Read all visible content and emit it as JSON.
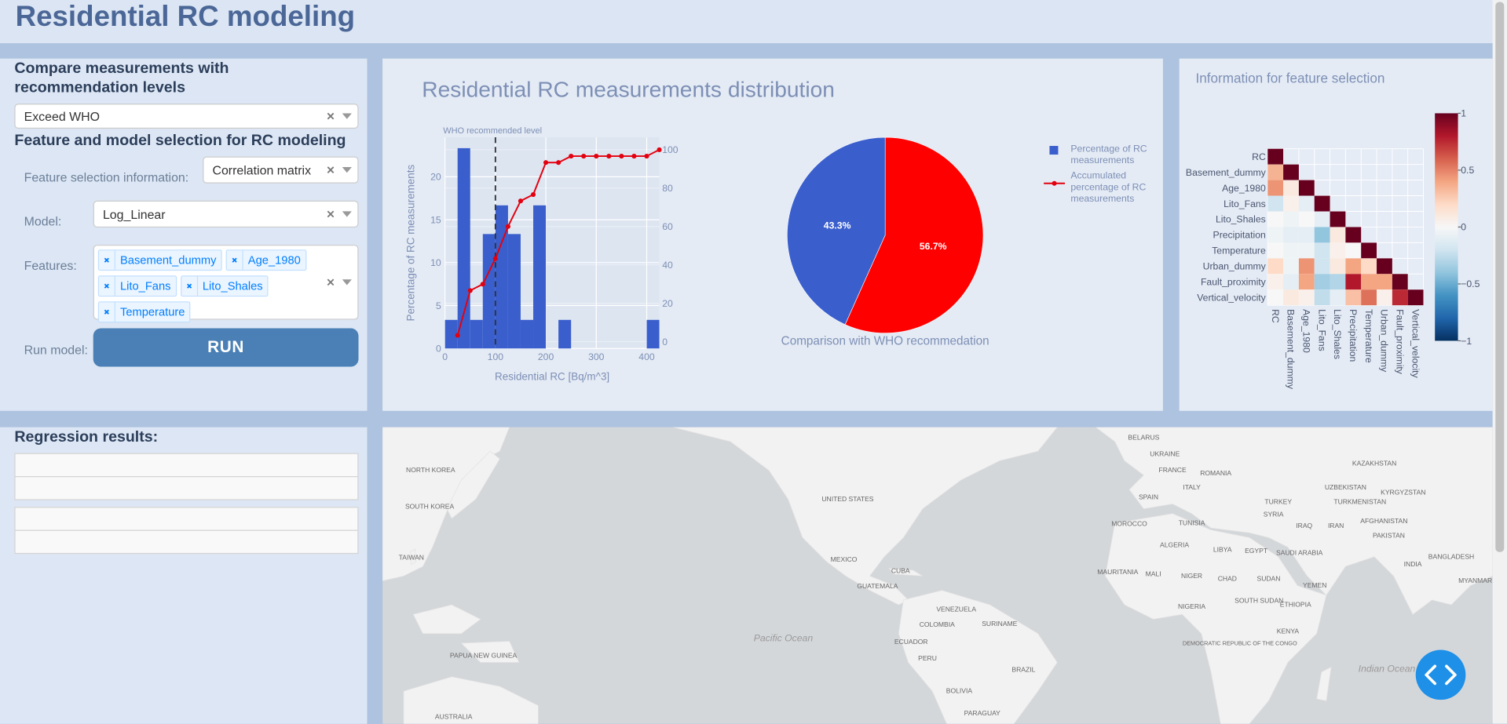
{
  "header": {
    "title": "Residential RC modeling"
  },
  "controls": {
    "compare_heading": "Compare measurements with recommendation levels",
    "compare_value": "Exceed WHO",
    "feature_heading": "Feature and model selection for RC modeling",
    "feature_info_label": "Feature selection information:",
    "feature_info_value": "Correlation matrix",
    "model_label": "Model:",
    "model_value": "Log_Linear",
    "features_label": "Features:",
    "features": [
      "Basement_dummy",
      "Age_1980",
      "Lito_Fans",
      "Lito_Shales",
      "Temperature"
    ],
    "run_label": "Run model:",
    "run_button": "RUN"
  },
  "regression": {
    "heading": "Regression results:"
  },
  "chart_data": [
    {
      "type": "histogram",
      "title": "Residential RC measurements distribution",
      "x_label": "Residential RC [Bq/m^3]",
      "y_label": "Percentage of RC measurements",
      "annotation": "WHO recommended level",
      "who_level": 100,
      "bins": [
        0,
        25,
        50,
        75,
        100,
        125,
        150,
        175,
        200,
        225,
        250,
        275,
        300,
        325,
        350,
        375,
        400,
        425
      ],
      "series": [
        {
          "name": "Percentage of RC measurements",
          "color": "#3a5fcd",
          "values": [
            3.33,
            23.33,
            3.33,
            13.33,
            16.67,
            13.33,
            3.33,
            16.67,
            0,
            3.33,
            0,
            0,
            0,
            0,
            0,
            0,
            3.33
          ]
        },
        {
          "name": "Accumulated percentage of RC measurements",
          "color": "#e3000f",
          "axis": "y2",
          "x": [
            25,
            50,
            75,
            100,
            125,
            150,
            175,
            200,
            225,
            250,
            275,
            300,
            325,
            350,
            375,
            400,
            425
          ],
          "values": [
            3.33,
            26.67,
            30,
            43.33,
            60,
            73.33,
            76.67,
            93.33,
            93.33,
            96.67,
            96.67,
            96.67,
            96.67,
            96.67,
            96.67,
            96.67,
            100
          ]
        }
      ],
      "xlim": [
        0,
        425
      ],
      "xticks": [
        0,
        100,
        200,
        300,
        400
      ],
      "ylim": [
        0,
        24.6
      ],
      "yticks": [
        0,
        5,
        10,
        15,
        20
      ],
      "y2lim": [
        -3.5,
        106.5
      ],
      "y2ticks": [
        0,
        20,
        40,
        60,
        80,
        100
      ],
      "grid": true
    },
    {
      "type": "pie",
      "title": "Comparison with WHO recommedation",
      "values": [
        56.7,
        43.3
      ],
      "value_labels": [
        "56.7%",
        "43.3%"
      ],
      "colors": [
        "#ff0000",
        "#3a5fcd"
      ]
    },
    {
      "type": "heatmap",
      "title": "Information for feature selection",
      "x": [
        "RC",
        "Basement_dummy",
        "Age_1980",
        "Lito_Fans",
        "Lito_Shales",
        "Precipitation",
        "Temperature",
        "Urban_dummy",
        "Fault_proximity",
        "Vertical_velocity"
      ],
      "y": [
        "RC",
        "Basement_dummy",
        "Age_1980",
        "Lito_Fans",
        "Lito_Shales",
        "Precipitation",
        "Temperature",
        "Urban_dummy",
        "Fault_proximity",
        "Vertical_velocity"
      ],
      "values": [
        [
          1,
          null,
          null,
          null,
          null,
          null,
          null,
          null,
          null,
          null
        ],
        [
          0.35,
          1,
          null,
          null,
          null,
          null,
          null,
          null,
          null,
          null
        ],
        [
          0.45,
          0.1,
          1,
          null,
          null,
          null,
          null,
          null,
          null,
          null
        ],
        [
          -0.2,
          0.05,
          -0.1,
          1,
          null,
          null,
          null,
          null,
          null,
          null
        ],
        [
          0,
          -0.05,
          0,
          -0.1,
          1,
          null,
          null,
          null,
          null,
          null
        ],
        [
          -0.05,
          -0.1,
          -0.1,
          -0.4,
          0.1,
          1,
          null,
          null,
          null,
          null
        ],
        [
          0,
          -0.05,
          -0.05,
          -0.2,
          0.05,
          0,
          1,
          null,
          null,
          null
        ],
        [
          0.2,
          -0.05,
          0.45,
          -0.2,
          0.1,
          0.4,
          0.2,
          1,
          null,
          null
        ],
        [
          0.05,
          -0.1,
          0.4,
          -0.35,
          -0.3,
          0.8,
          0.4,
          0.4,
          1,
          null
        ],
        [
          0,
          0.1,
          0.05,
          -0.25,
          -0.1,
          0.3,
          0.55,
          0.05,
          0.75,
          1
        ]
      ],
      "zlim": [
        -1,
        1
      ],
      "zticks": [
        1,
        0.5,
        0,
        {
          "value": -0.5,
          "label": "−0.5"
        },
        {
          "value": -1,
          "label": "−1"
        }
      ],
      "colorscale": [
        "#053061",
        "#2166ac",
        "#4393c3",
        "#92c5de",
        "#d1e5f0",
        "#f7f7f7",
        "#fddbc7",
        "#f4a582",
        "#d6604d",
        "#b2182b",
        "#67001f"
      ]
    }
  ],
  "map": {
    "labels": [
      "BELARUS",
      "UKRAINE",
      "KAZAKHSTAN",
      "FRANCE",
      "ROMANIA",
      "UZBEKISTAN",
      "KYRGYZSTAN",
      "ITALY",
      "TURKEY",
      "TURKMENISTAN",
      "SPAIN",
      "TUNISIA",
      "SYRIA",
      "IRAQ",
      "IRAN",
      "AFGHANISTAN",
      "MOROCCO",
      "PAKISTAN",
      "ALGERIA",
      "LIBYA",
      "EGYPT",
      "SAUDI ARABIA",
      "INDIA",
      "BANGLADESH",
      "MAURITANIA",
      "MALI",
      "NIGER",
      "CHAD",
      "SUDAN",
      "YEMEN",
      "MYANMAR",
      "NIGERIA",
      "ETHIOPIA",
      "SOUTH SUDAN",
      "KENYA",
      "DEMOCRATIC REPUBLIC OF THE CONGO",
      "Indian Ocean",
      "Pacific Ocean",
      "UNITED STATES",
      "MEXICO",
      "CUBA",
      "GUATEMALA",
      "VENEZUELA",
      "COLOMBIA",
      "SURINAME",
      "ECUADOR",
      "PERU",
      "BRAZIL",
      "BOLIVIA",
      "PARAGUAY",
      "NORTH KOREA",
      "SOUTH KOREA",
      "TAIWAN",
      "PAPUA NEW GUINEA",
      "AUSTRALIA"
    ]
  }
}
